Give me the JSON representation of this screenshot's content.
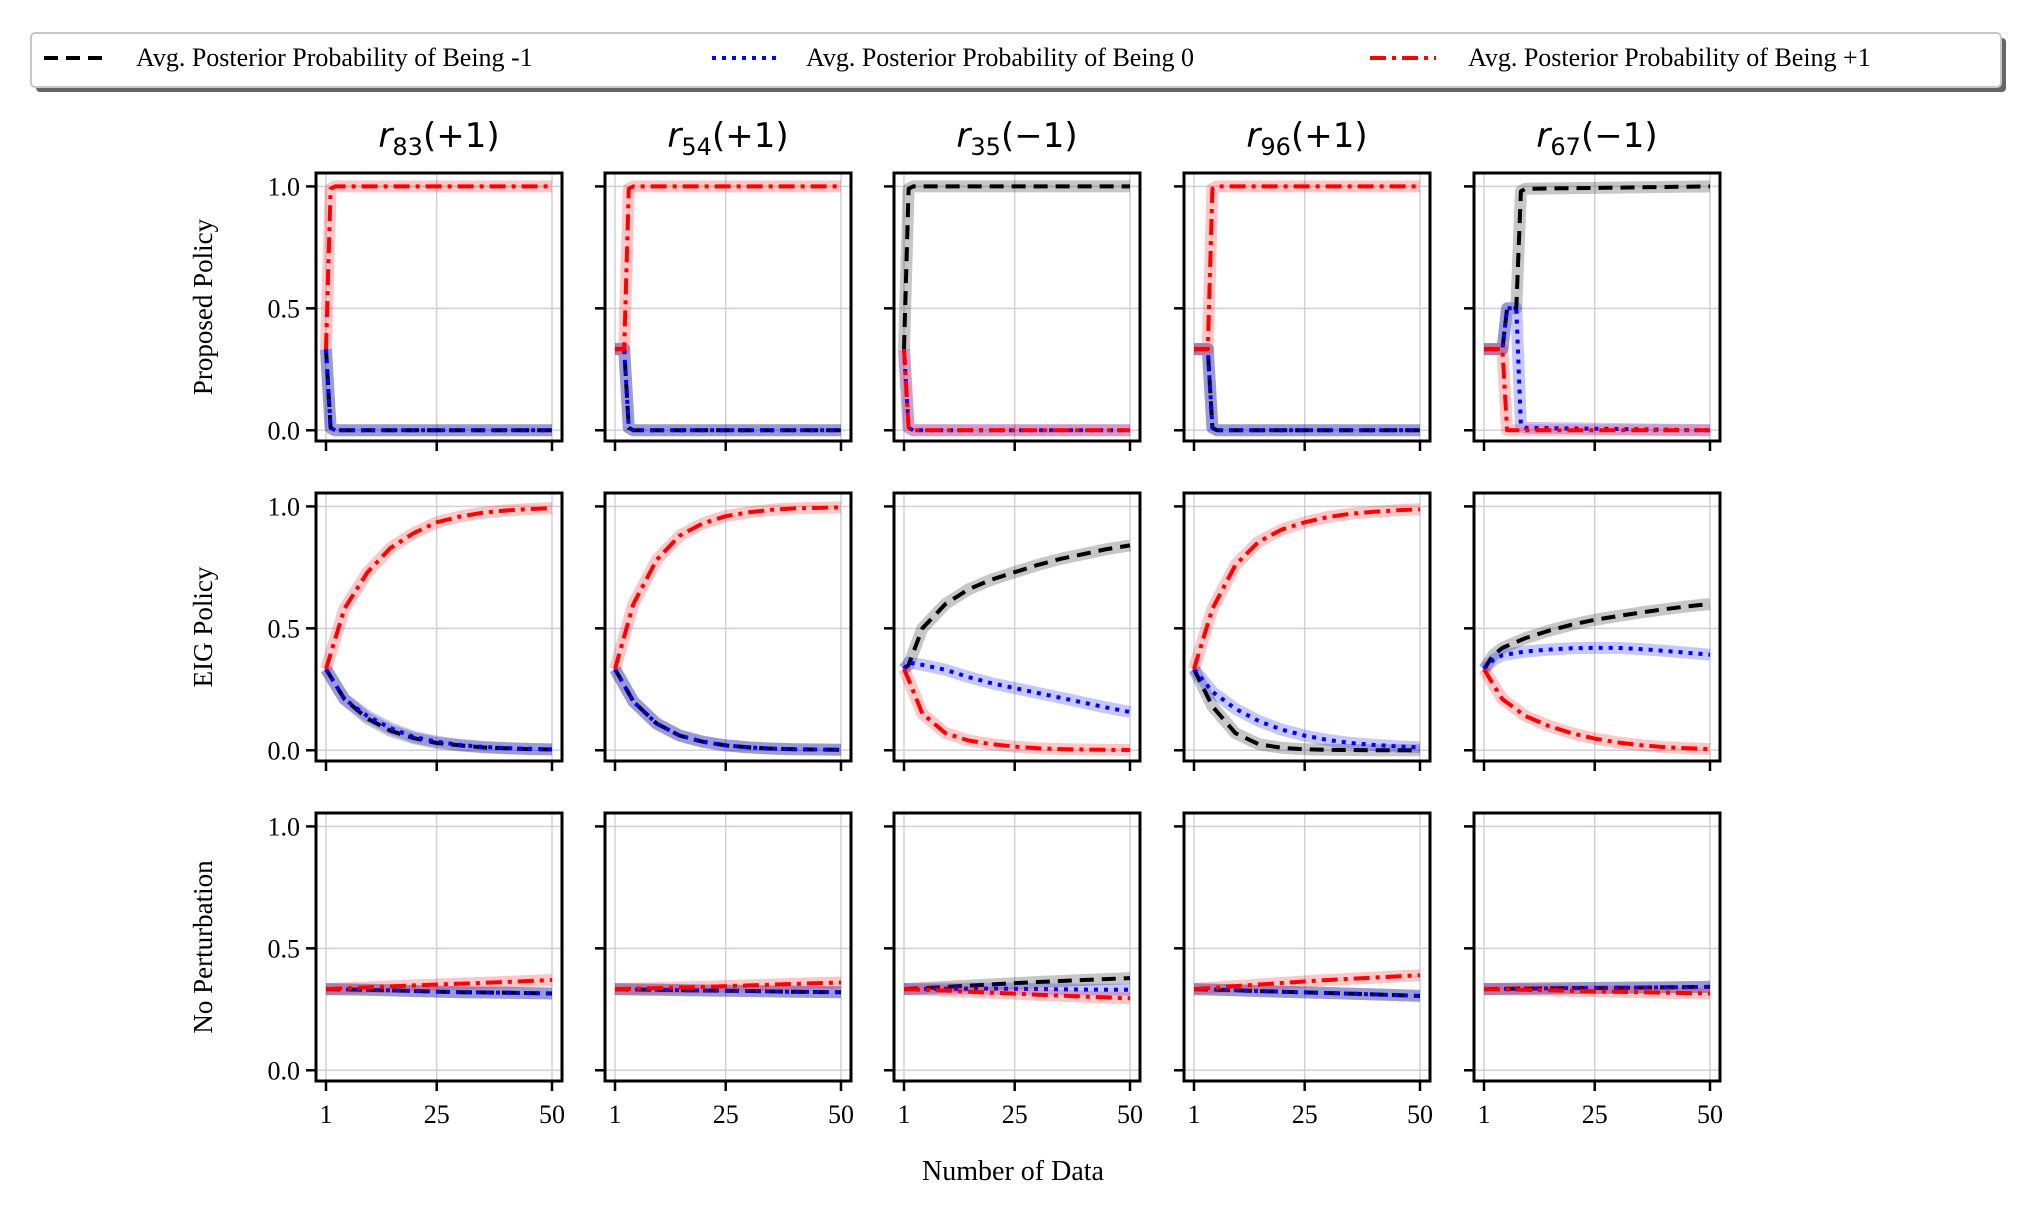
{
  "figure": {
    "xlabel": "Number of Data",
    "row_labels": [
      "Proposed Policy",
      "EIG Policy",
      "No Perturbation"
    ],
    "column_titles": [
      {
        "base": "r",
        "sub": "83",
        "sign": "(+1)"
      },
      {
        "base": "r",
        "sub": "54",
        "sign": "(+1)"
      },
      {
        "base": "r",
        "sub": "35",
        "sign": "(−1)"
      },
      {
        "base": "r",
        "sub": "96",
        "sign": "(+1)"
      },
      {
        "base": "r",
        "sub": "67",
        "sign": "(−1)"
      }
    ],
    "x_ticks": [
      "1",
      "25",
      "50"
    ],
    "y_ticks": [
      "0.0",
      "0.5",
      "1.0"
    ],
    "legend": [
      {
        "label": "Avg. Posterior Probability of Being -1",
        "color": "#000000",
        "style": "dashed"
      },
      {
        "label": "Avg. Posterior Probability of Being 0",
        "color": "#0000ff",
        "style": "dotted"
      },
      {
        "label": "Avg. Posterior Probability of Being +1",
        "color": "#ff0000",
        "style": "dashdot"
      }
    ]
  },
  "chart_data": {
    "type": "line",
    "layout": "3 rows x 5 columns of subplots",
    "x_range": [
      1,
      50
    ],
    "ylim": [
      0,
      1
    ],
    "grid": true,
    "legend_placement": "top",
    "series_names": [
      "Avg. Posterior Probability of Being -1",
      "Avg. Posterior Probability of Being 0",
      "Avg. Posterior Probability of Being +1"
    ],
    "panels": [
      [
        {
          "x": [
            1,
            2,
            3,
            50
          ],
          "series": [
            [
              0.333,
              0.01,
              0.0,
              0.0
            ],
            [
              0.333,
              0.01,
              0.0,
              0.0
            ],
            [
              0.333,
              0.99,
              1.0,
              1.0
            ]
          ]
        },
        {
          "x": [
            1,
            3,
            4,
            5,
            50
          ],
          "series": [
            [
              0.333,
              0.333,
              0.01,
              0.0,
              0.0
            ],
            [
              0.333,
              0.333,
              0.01,
              0.0,
              0.0
            ],
            [
              0.333,
              0.333,
              0.99,
              1.0,
              1.0
            ]
          ]
        },
        {
          "x": [
            1,
            2,
            3,
            50
          ],
          "series": [
            [
              0.333,
              0.99,
              1.0,
              1.0
            ],
            [
              0.333,
              0.01,
              0.0,
              0.0
            ],
            [
              0.333,
              0.01,
              0.0,
              0.0
            ]
          ]
        },
        {
          "x": [
            1,
            4,
            5,
            6,
            50
          ],
          "series": [
            [
              0.333,
              0.333,
              0.01,
              0.0,
              0.0
            ],
            [
              0.333,
              0.333,
              0.01,
              0.0,
              0.0
            ],
            [
              0.333,
              0.333,
              0.99,
              1.0,
              1.0
            ]
          ]
        },
        {
          "x": [
            1,
            5,
            6,
            7,
            8,
            9,
            10,
            50
          ],
          "series": [
            [
              0.333,
              0.333,
              0.5,
              0.5,
              0.5,
              0.98,
              0.99,
              1.0
            ],
            [
              0.333,
              0.333,
              0.5,
              0.5,
              0.5,
              0.02,
              0.01,
              0.0
            ],
            [
              0.333,
              0.333,
              0.0,
              0.0,
              0.0,
              0.0,
              0.0,
              0.0
            ]
          ]
        }
      ],
      [
        {
          "x": [
            1,
            5,
            10,
            15,
            20,
            25,
            30,
            35,
            40,
            45,
            50
          ],
          "series": [
            [
              0.333,
              0.21,
              0.13,
              0.08,
              0.05,
              0.03,
              0.02,
              0.012,
              0.008,
              0.005,
              0.003
            ],
            [
              0.333,
              0.21,
              0.14,
              0.09,
              0.055,
              0.035,
              0.022,
              0.014,
              0.009,
              0.006,
              0.004
            ],
            [
              0.333,
              0.58,
              0.73,
              0.83,
              0.89,
              0.935,
              0.958,
              0.974,
              0.983,
              0.989,
              0.993
            ]
          ]
        },
        {
          "x": [
            1,
            5,
            10,
            15,
            20,
            25,
            30,
            35,
            40,
            45,
            50
          ],
          "series": [
            [
              0.333,
              0.2,
              0.11,
              0.06,
              0.035,
              0.02,
              0.012,
              0.007,
              0.004,
              0.003,
              0.002
            ],
            [
              0.333,
              0.2,
              0.11,
              0.06,
              0.035,
              0.02,
              0.012,
              0.007,
              0.004,
              0.003,
              0.002
            ],
            [
              0.333,
              0.6,
              0.78,
              0.88,
              0.93,
              0.96,
              0.976,
              0.986,
              0.992,
              0.994,
              0.996
            ]
          ]
        },
        {
          "x": [
            1,
            2,
            5,
            10,
            15,
            20,
            25,
            30,
            35,
            40,
            45,
            50
          ],
          "series": [
            [
              0.333,
              0.35,
              0.5,
              0.6,
              0.66,
              0.7,
              0.73,
              0.76,
              0.785,
              0.805,
              0.825,
              0.84
            ],
            [
              0.333,
              0.36,
              0.35,
              0.33,
              0.3,
              0.275,
              0.255,
              0.235,
              0.215,
              0.195,
              0.175,
              0.157
            ],
            [
              0.333,
              0.29,
              0.15,
              0.07,
              0.04,
              0.025,
              0.015,
              0.008,
              0.005,
              0.003,
              0.002,
              0.001
            ]
          ]
        },
        {
          "x": [
            1,
            5,
            10,
            15,
            20,
            25,
            30,
            35,
            40,
            45,
            50
          ],
          "series": [
            [
              0.333,
              0.18,
              0.07,
              0.025,
              0.01,
              0.004,
              0.002,
              0.001,
              0.0,
              0.0,
              0.0
            ],
            [
              0.333,
              0.24,
              0.17,
              0.12,
              0.085,
              0.06,
              0.042,
              0.03,
              0.022,
              0.016,
              0.012
            ],
            [
              0.333,
              0.58,
              0.76,
              0.855,
              0.905,
              0.935,
              0.956,
              0.97,
              0.978,
              0.984,
              0.988
            ]
          ]
        },
        {
          "x": [
            1,
            3,
            5,
            10,
            15,
            20,
            25,
            30,
            35,
            40,
            45,
            50
          ],
          "series": [
            [
              0.333,
              0.39,
              0.42,
              0.46,
              0.49,
              0.515,
              0.535,
              0.55,
              0.565,
              0.578,
              0.59,
              0.6
            ],
            [
              0.333,
              0.37,
              0.39,
              0.405,
              0.413,
              0.418,
              0.42,
              0.42,
              0.415,
              0.408,
              0.4,
              0.392
            ],
            [
              0.333,
              0.27,
              0.21,
              0.14,
              0.1,
              0.07,
              0.048,
              0.032,
              0.021,
              0.013,
              0.008,
              0.005
            ]
          ]
        }
      ],
      [
        {
          "x": [
            1,
            10,
            20,
            30,
            40,
            50
          ],
          "series": [
            [
              0.333,
              0.33,
              0.325,
              0.32,
              0.318,
              0.315
            ],
            [
              0.333,
              0.33,
              0.325,
              0.32,
              0.318,
              0.315
            ],
            [
              0.333,
              0.34,
              0.348,
              0.355,
              0.362,
              0.37
            ]
          ]
        },
        {
          "x": [
            1,
            10,
            20,
            30,
            40,
            50
          ],
          "series": [
            [
              0.333,
              0.33,
              0.327,
              0.325,
              0.322,
              0.32
            ],
            [
              0.333,
              0.33,
              0.327,
              0.325,
              0.322,
              0.32
            ],
            [
              0.333,
              0.337,
              0.342,
              0.348,
              0.354,
              0.36
            ]
          ]
        },
        {
          "x": [
            1,
            10,
            20,
            30,
            40,
            50
          ],
          "series": [
            [
              0.333,
              0.342,
              0.352,
              0.362,
              0.37,
              0.378
            ],
            [
              0.333,
              0.334,
              0.335,
              0.333,
              0.331,
              0.33
            ],
            [
              0.333,
              0.327,
              0.318,
              0.31,
              0.302,
              0.295
            ]
          ]
        },
        {
          "x": [
            1,
            10,
            20,
            30,
            40,
            50
          ],
          "series": [
            [
              0.333,
              0.328,
              0.322,
              0.317,
              0.311,
              0.305
            ],
            [
              0.333,
              0.328,
              0.322,
              0.317,
              0.311,
              0.305
            ],
            [
              0.333,
              0.345,
              0.358,
              0.37,
              0.38,
              0.39
            ]
          ]
        },
        {
          "x": [
            1,
            10,
            20,
            30,
            40,
            50
          ],
          "series": [
            [
              0.333,
              0.335,
              0.337,
              0.338,
              0.34,
              0.342
            ],
            [
              0.333,
              0.335,
              0.337,
              0.338,
              0.34,
              0.342
            ],
            [
              0.333,
              0.33,
              0.326,
              0.322,
              0.318,
              0.315
            ]
          ]
        }
      ]
    ]
  }
}
